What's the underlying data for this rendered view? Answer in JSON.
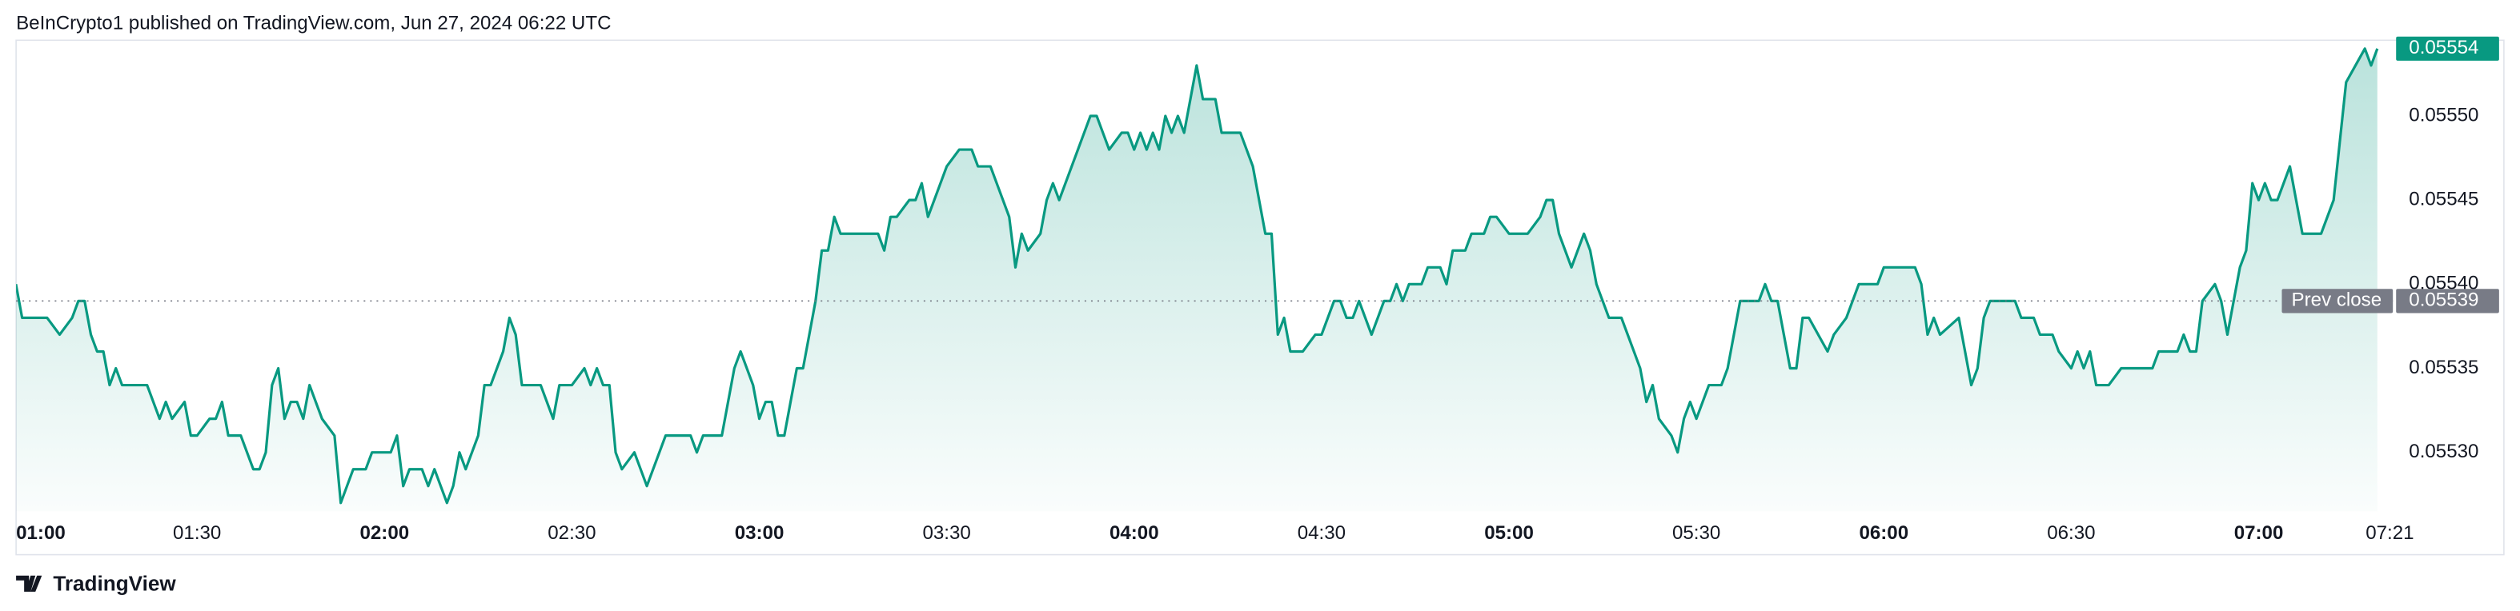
{
  "chart_data": {
    "type": "area",
    "title": "BeInCrypto1 published on TradingView.com, Jun 27, 2024 06:22 UTC",
    "brand": "TradingView",
    "color": "#089981",
    "grid": false,
    "xlim": [
      "01:00",
      "07:22"
    ],
    "xticks": [
      "01:00",
      "01:30",
      "02:00",
      "02:30",
      "03:00",
      "03:30",
      "04:00",
      "04:30",
      "05:00",
      "05:30",
      "06:00",
      "06:30",
      "07:00",
      "07:21"
    ],
    "ylim": [
      0.055265,
      0.055545
    ],
    "yticks": [
      {
        "value": 0.0553,
        "label": "0.05530"
      },
      0.05535,
      {
        "value": 0.0554,
        "label": "0.05540"
      },
      0.05545,
      {
        "value": 0.0555,
        "label": "0.05550"
      }
    ],
    "last_price": 0.05554,
    "prev_close": {
      "label": "Prev close",
      "value": 0.05539
    },
    "x": [
      "01:01",
      "01:02",
      "01:06",
      "01:08",
      "01:10",
      "01:11",
      "01:12",
      "01:13",
      "01:14",
      "01:15",
      "01:16",
      "01:17",
      "01:18",
      "01:22",
      "01:24",
      "01:25",
      "01:26",
      "01:28",
      "01:29",
      "01:30",
      "01:32",
      "01:33",
      "01:34",
      "01:35",
      "01:37",
      "01:38",
      "01:39",
      "01:40",
      "01:41",
      "01:42",
      "01:43",
      "01:44",
      "01:45",
      "01:46",
      "01:47",
      "01:48",
      "01:50",
      "01:52",
      "01:53",
      "01:54",
      "01:55",
      "01:57",
      "01:58",
      "02:01",
      "02:02",
      "02:03",
      "02:04",
      "02:06",
      "02:07",
      "02:08",
      "02:10",
      "02:11",
      "02:12",
      "02:13",
      "02:15",
      "02:16",
      "02:17",
      "02:19",
      "02:20",
      "02:21",
      "02:22",
      "02:25",
      "02:27",
      "02:28",
      "02:30",
      "02:32",
      "02:33",
      "02:34",
      "02:35",
      "02:36",
      "02:37",
      "02:38",
      "02:40",
      "02:42",
      "02:43",
      "02:45",
      "02:49",
      "02:50",
      "02:51",
      "02:54",
      "02:55",
      "02:56",
      "02:57",
      "02:59",
      "03:00",
      "03:01",
      "03:02",
      "03:03",
      "03:04",
      "03:06",
      "03:07",
      "03:09",
      "03:10",
      "03:11",
      "03:12",
      "03:13",
      "03:14",
      "03:19",
      "03:20",
      "03:21",
      "03:22",
      "03:24",
      "03:25",
      "03:26",
      "03:27",
      "03:29",
      "03:30",
      "03:32",
      "03:34",
      "03:35",
      "03:37",
      "03:38",
      "03:40",
      "03:41",
      "03:42",
      "03:43",
      "03:45",
      "03:46",
      "03:47",
      "03:48",
      "03:51",
      "03:52",
      "03:53",
      "03:54",
      "03:55",
      "03:56",
      "03:58",
      "03:59",
      "04:00",
      "04:01",
      "04:02",
      "04:03",
      "04:04",
      "04:05",
      "04:06",
      "04:07",
      "04:08",
      "04:09",
      "04:10",
      "04:11",
      "04:13",
      "04:14",
      "04:17",
      "04:19",
      "04:21",
      "04:22",
      "04:23",
      "04:24",
      "04:25",
      "04:27",
      "04:29",
      "04:30",
      "04:31",
      "04:32",
      "04:33",
      "04:34",
      "04:35",
      "04:36",
      "04:37",
      "04:38",
      "04:39",
      "04:40",
      "04:41",
      "04:42",
      "04:43",
      "04:44",
      "04:46",
      "04:47",
      "04:49",
      "04:50",
      "04:51",
      "04:53",
      "04:54",
      "04:56",
      "04:57",
      "04:58",
      "05:00",
      "05:03",
      "05:05",
      "05:06",
      "05:07",
      "05:08",
      "05:10",
      "05:11",
      "05:12",
      "05:13",
      "05:14",
      "05:15",
      "05:16",
      "05:18",
      "05:20",
      "05:21",
      "05:22",
      "05:23",
      "05:24",
      "05:26",
      "05:27",
      "05:28",
      "05:29",
      "05:30",
      "05:32",
      "05:34",
      "05:35",
      "05:36",
      "05:37",
      "05:40",
      "05:41",
      "05:42",
      "05:43",
      "05:44",
      "05:45",
      "05:46",
      "05:47",
      "05:48",
      "05:51",
      "05:52",
      "05:54",
      "05:56",
      "05:59",
      "06:00",
      "06:05",
      "06:06",
      "06:07",
      "06:08",
      "06:09",
      "06:12",
      "06:13",
      "06:14",
      "06:15",
      "06:16",
      "06:17",
      "06:21",
      "06:22",
      "06:24",
      "06:25",
      "06:27",
      "06:28",
      "06:30",
      "06:31",
      "06:32",
      "06:33",
      "06:34",
      "06:36",
      "06:38",
      "06:43",
      "06:44",
      "06:47",
      "06:48",
      "06:49",
      "06:50",
      "06:51",
      "06:53",
      "06:54",
      "06:55",
      "06:56",
      "06:57",
      "06:58",
      "06:59",
      "07:00",
      "07:01",
      "07:02",
      "07:03",
      "07:05",
      "07:06",
      "07:07",
      "07:10",
      "07:12",
      "07:14",
      "07:17",
      "07:18",
      "07:19"
    ],
    "values": [
      0.0554,
      0.05538,
      0.05538,
      0.05537,
      0.05538,
      0.05539,
      0.05539,
      0.05537,
      0.05536,
      0.05536,
      0.05534,
      0.05535,
      0.05534,
      0.05534,
      0.05532,
      0.05533,
      0.05532,
      0.05533,
      0.05531,
      0.05531,
      0.05532,
      0.05532,
      0.05533,
      0.05531,
      0.05531,
      0.0553,
      0.05529,
      0.05529,
      0.0553,
      0.05534,
      0.05535,
      0.05532,
      0.05533,
      0.05533,
      0.05532,
      0.05534,
      0.05532,
      0.05531,
      0.05527,
      0.05528,
      0.05529,
      0.05529,
      0.0553,
      0.0553,
      0.05531,
      0.05528,
      0.05529,
      0.05529,
      0.05528,
      0.05529,
      0.05527,
      0.05528,
      0.0553,
      0.05529,
      0.05531,
      0.05534,
      0.05534,
      0.05536,
      0.05538,
      0.05537,
      0.05534,
      0.05534,
      0.05532,
      0.05534,
      0.05534,
      0.05535,
      0.05534,
      0.05535,
      0.05534,
      0.05534,
      0.0553,
      0.05529,
      0.0553,
      0.05528,
      0.05529,
      0.05531,
      0.05531,
      0.0553,
      0.05531,
      0.05531,
      0.05533,
      0.05535,
      0.05536,
      0.05534,
      0.05532,
      0.05533,
      0.05533,
      0.05531,
      0.05531,
      0.05535,
      0.05535,
      0.05539,
      0.05542,
      0.05542,
      0.05544,
      0.05543,
      0.05543,
      0.05543,
      0.05542,
      0.05544,
      0.05544,
      0.05545,
      0.05545,
      0.05546,
      0.05544,
      0.05546,
      0.05547,
      0.05548,
      0.05548,
      0.05547,
      0.05547,
      0.05546,
      0.05544,
      0.05541,
      0.05543,
      0.05542,
      0.05543,
      0.05545,
      0.05546,
      0.05545,
      0.05548,
      0.05549,
      0.0555,
      0.0555,
      0.05549,
      0.05548,
      0.05549,
      0.05549,
      0.05548,
      0.05549,
      0.05548,
      0.05549,
      0.05548,
      0.0555,
      0.05549,
      0.0555,
      0.05549,
      0.05551,
      0.05553,
      0.05551,
      0.05551,
      0.05549,
      0.05549,
      0.05547,
      0.05543,
      0.05543,
      0.05537,
      0.05538,
      0.05536,
      0.05536,
      0.05537,
      0.05537,
      0.05538,
      0.05539,
      0.05539,
      0.05538,
      0.05538,
      0.05539,
      0.05538,
      0.05537,
      0.05538,
      0.05539,
      0.05539,
      0.0554,
      0.05539,
      0.0554,
      0.0554,
      0.05541,
      0.05541,
      0.0554,
      0.05542,
      0.05542,
      0.05543,
      0.05543,
      0.05544,
      0.05544,
      0.05543,
      0.05543,
      0.05544,
      0.05545,
      0.05545,
      0.05543,
      0.05541,
      0.05542,
      0.05543,
      0.05542,
      0.0554,
      0.05539,
      0.05538,
      0.05538,
      0.05536,
      0.05535,
      0.05533,
      0.05534,
      0.05532,
      0.05531,
      0.0553,
      0.05532,
      0.05533,
      0.05532,
      0.05534,
      0.05534,
      0.05535,
      0.05537,
      0.05539,
      0.05539,
      0.0554,
      0.05539,
      0.05539,
      0.05537,
      0.05535,
      0.05535,
      0.05538,
      0.05538,
      0.05536,
      0.05537,
      0.05538,
      0.0554,
      0.0554,
      0.05541,
      0.05541,
      0.0554,
      0.05537,
      0.05538,
      0.05537,
      0.05538,
      0.05536,
      0.05534,
      0.05535,
      0.05538,
      0.05539,
      0.05539,
      0.05538,
      0.05538,
      0.05537,
      0.05537,
      0.05536,
      0.05535,
      0.05536,
      0.05535,
      0.05536,
      0.05534,
      0.05534,
      0.05535,
      0.05535,
      0.05536,
      0.05536,
      0.05537,
      0.05536,
      0.05536,
      0.05539,
      0.0554,
      0.05539,
      0.05537,
      0.05539,
      0.05541,
      0.05542,
      0.05546,
      0.05545,
      0.05546,
      0.05545,
      0.05545,
      0.05547,
      0.05545,
      0.05543,
      0.05543,
      0.05545,
      0.05552,
      0.05554,
      0.05553,
      0.05554
    ]
  }
}
